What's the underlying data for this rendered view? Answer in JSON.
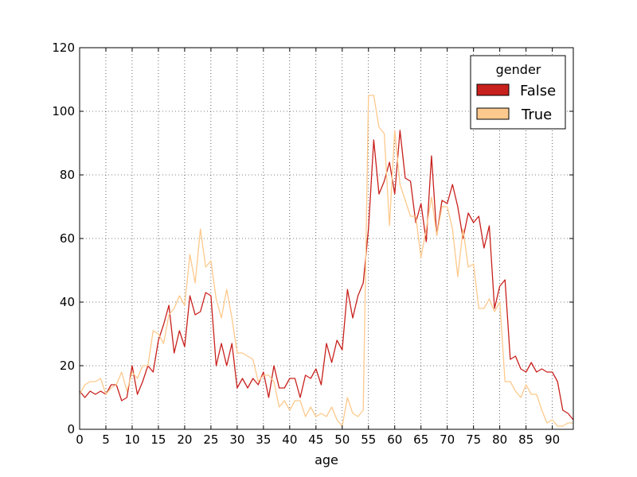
{
  "chart_data": {
    "type": "line",
    "title": "",
    "xlabel": "age",
    "ylabel": "",
    "xlim": [
      0,
      94
    ],
    "ylim": [
      0,
      120
    ],
    "xticks": [
      0,
      5,
      10,
      15,
      20,
      25,
      30,
      35,
      40,
      45,
      50,
      55,
      60,
      65,
      70,
      75,
      80,
      85,
      90
    ],
    "yticks": [
      0,
      20,
      40,
      60,
      80,
      100,
      120
    ],
    "grid": true,
    "legend": {
      "title": "gender",
      "placement": "top-right"
    },
    "x": [
      0,
      1,
      2,
      3,
      4,
      5,
      6,
      7,
      8,
      9,
      10,
      11,
      12,
      13,
      14,
      15,
      16,
      17,
      18,
      19,
      20,
      21,
      22,
      23,
      24,
      25,
      26,
      27,
      28,
      29,
      30,
      31,
      32,
      33,
      34,
      35,
      36,
      37,
      38,
      39,
      40,
      41,
      42,
      43,
      44,
      45,
      46,
      47,
      48,
      49,
      50,
      51,
      52,
      53,
      54,
      55,
      56,
      57,
      58,
      59,
      60,
      61,
      62,
      63,
      64,
      65,
      66,
      67,
      68,
      69,
      70,
      71,
      72,
      73,
      74,
      75,
      76,
      77,
      78,
      79,
      80,
      81,
      82,
      83,
      84,
      85,
      86,
      87,
      88,
      89,
      90,
      91,
      92,
      93,
      94
    ],
    "series": [
      {
        "name": "False",
        "color": "#c8201c",
        "values": [
          12,
          10,
          12,
          11,
          12,
          11,
          14,
          14,
          9,
          10,
          20,
          11,
          15,
          20,
          18,
          28,
          33,
          39,
          24,
          31,
          26,
          42,
          36,
          37,
          43,
          42,
          20,
          27,
          20,
          27,
          13,
          16,
          13,
          16,
          14,
          18,
          10,
          20,
          13,
          13,
          16,
          16,
          10,
          17,
          16,
          19,
          14,
          27,
          21,
          28,
          25,
          44,
          35,
          42,
          46,
          63,
          91,
          74,
          78,
          84,
          74,
          94,
          79,
          78,
          65,
          71,
          59,
          86,
          61,
          72,
          71,
          77,
          70,
          60,
          68,
          65,
          67,
          57,
          64,
          38,
          45,
          47,
          22,
          23,
          19,
          18,
          21,
          18,
          19,
          18,
          18,
          15,
          6,
          5,
          3
        ]
      },
      {
        "name": "True",
        "color": "#fdc98c",
        "values": [
          11,
          14,
          15,
          15,
          16,
          11,
          13,
          14,
          18,
          12,
          18,
          16,
          20,
          20,
          31,
          30,
          27,
          36,
          38,
          42,
          39,
          55,
          46,
          63,
          51,
          53,
          41,
          35,
          44,
          35,
          24,
          24,
          23,
          22,
          15,
          17,
          17,
          15,
          7,
          9,
          6,
          9,
          9,
          4,
          7,
          4,
          5,
          4,
          7,
          3,
          1,
          10,
          5,
          4,
          6,
          105,
          105,
          95,
          93,
          64,
          94,
          77,
          72,
          67,
          67,
          54,
          63,
          73,
          61,
          70,
          70,
          63,
          48,
          63,
          51,
          52,
          38,
          38,
          41,
          37,
          40,
          15,
          15,
          12,
          10,
          14,
          11,
          11,
          6,
          2,
          3,
          1,
          1,
          2,
          2
        ]
      }
    ]
  }
}
